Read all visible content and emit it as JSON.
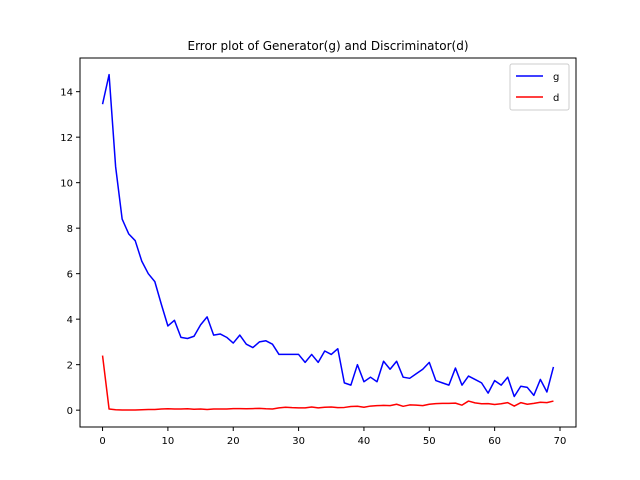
{
  "chart_data": {
    "type": "line",
    "title": "Error plot of Generator(g) and Discriminator(d)",
    "xlabel": "",
    "ylabel": "",
    "xlim": [
      -3.45,
      72.45
    ],
    "ylim": [
      -0.74,
      15.48
    ],
    "x_ticks": [
      0,
      10,
      20,
      30,
      40,
      50,
      60,
      70
    ],
    "y_ticks": [
      0,
      2,
      4,
      6,
      8,
      10,
      12,
      14
    ],
    "grid": false,
    "legend_position": "top-right",
    "series": [
      {
        "name": "g",
        "color": "#0000ff",
        "values": [
          13.45,
          14.75,
          10.7,
          8.4,
          7.75,
          7.45,
          6.55,
          6.0,
          5.65,
          4.65,
          3.7,
          3.95,
          3.2,
          3.15,
          3.25,
          3.75,
          4.1,
          3.3,
          3.35,
          3.2,
          2.95,
          3.3,
          2.9,
          2.75,
          3.0,
          3.05,
          2.9,
          2.45,
          2.45,
          2.45,
          2.45,
          2.1,
          2.45,
          2.1,
          2.6,
          2.45,
          2.7,
          1.2,
          1.1,
          2.0,
          1.25,
          1.45,
          1.25,
          2.15,
          1.8,
          2.15,
          1.45,
          1.4,
          1.6,
          1.8,
          2.1,
          1.3,
          1.2,
          1.1,
          1.85,
          1.1,
          1.5,
          1.35,
          1.2,
          0.75,
          1.3,
          1.1,
          1.45,
          0.6,
          1.05,
          1.0,
          0.65,
          1.35,
          0.8,
          1.9
        ]
      },
      {
        "name": "d",
        "color": "#ff0000",
        "values": [
          2.4,
          0.05,
          0.02,
          0.01,
          0.01,
          0.01,
          0.02,
          0.03,
          0.03,
          0.05,
          0.06,
          0.05,
          0.05,
          0.06,
          0.04,
          0.05,
          0.03,
          0.05,
          0.05,
          0.05,
          0.07,
          0.07,
          0.06,
          0.07,
          0.08,
          0.06,
          0.05,
          0.1,
          0.13,
          0.11,
          0.1,
          0.1,
          0.14,
          0.1,
          0.13,
          0.14,
          0.11,
          0.12,
          0.16,
          0.17,
          0.13,
          0.18,
          0.2,
          0.21,
          0.2,
          0.26,
          0.17,
          0.23,
          0.22,
          0.2,
          0.26,
          0.29,
          0.3,
          0.3,
          0.31,
          0.22,
          0.4,
          0.32,
          0.28,
          0.29,
          0.25,
          0.28,
          0.33,
          0.18,
          0.33,
          0.26,
          0.3,
          0.35,
          0.33,
          0.4
        ]
      }
    ]
  }
}
